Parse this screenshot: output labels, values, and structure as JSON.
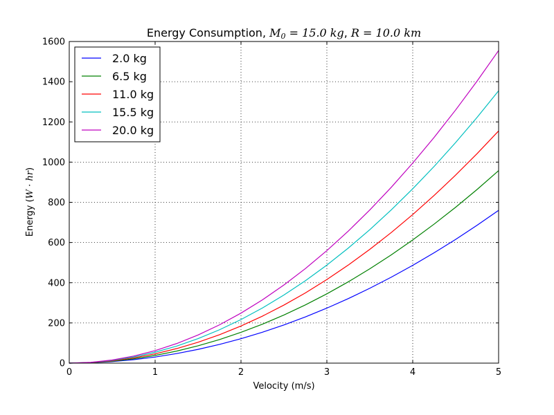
{
  "chart_data": {
    "type": "line",
    "title": {
      "prefix": "Energy Consumption, ",
      "m0_symbol": "M",
      "m0_sub": "0",
      "m0_rest": " = 15.0 kg",
      "sep": ", ",
      "r_part": "R = 10.0 km"
    },
    "xlabel": "Velocity (m/s)",
    "ylabel": {
      "prefix": "Energy (",
      "math": "W · hr",
      "suffix": ")"
    },
    "xlim": [
      0,
      5
    ],
    "ylim": [
      0,
      1600
    ],
    "xticks": [
      0,
      1,
      2,
      3,
      4,
      5
    ],
    "yticks": [
      0,
      200,
      400,
      600,
      800,
      1000,
      1200,
      1400,
      1600
    ],
    "grid": true,
    "legend_position": "top-left",
    "x": [
      0,
      0.25,
      0.5,
      0.75,
      1.0,
      1.25,
      1.5,
      1.75,
      2.0,
      2.25,
      2.5,
      2.75,
      3.0,
      3.25,
      3.5,
      3.75,
      4.0,
      4.25,
      4.5,
      4.75,
      5.0
    ],
    "series": [
      {
        "name": "2.0 kg",
        "color": "#0000ff",
        "coef": 30.4
      },
      {
        "name": "6.5 kg",
        "color": "#008000",
        "coef": 38.3
      },
      {
        "name": "11.0 kg",
        "color": "#ff0000",
        "coef": 46.2
      },
      {
        "name": "15.5 kg",
        "color": "#00bfbf",
        "coef": 54.2
      },
      {
        "name": "20.0 kg",
        "color": "#bf00bf",
        "coef": 62.2
      }
    ]
  }
}
